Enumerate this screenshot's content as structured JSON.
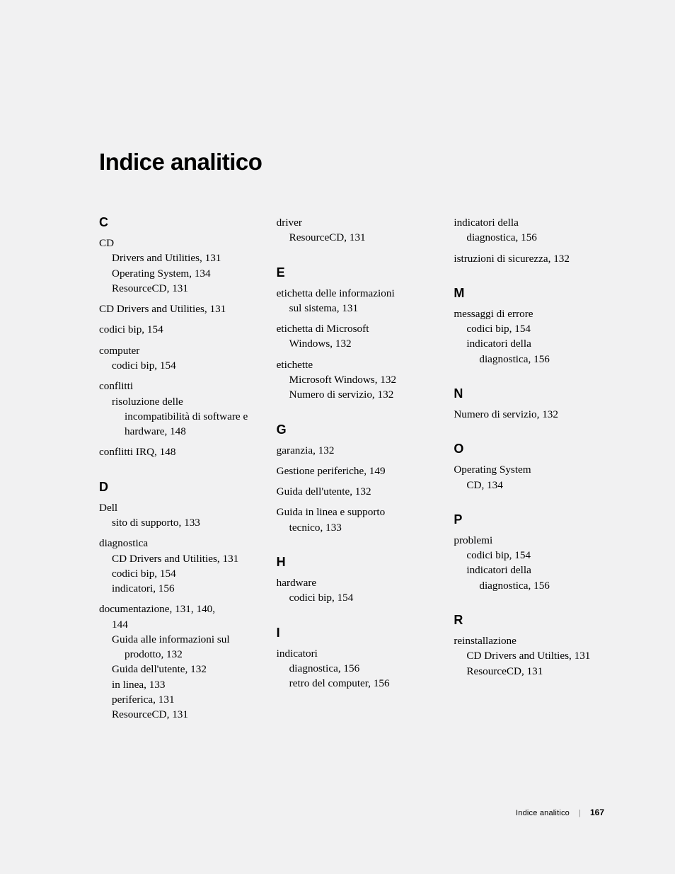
{
  "title": "Indice analitico",
  "footer": {
    "label": "Indice analitico",
    "page": "167"
  },
  "columns": [
    [
      {
        "type": "letter",
        "text": "C"
      },
      {
        "type": "entry",
        "head": "CD",
        "subs": [
          "Drivers and Utilities, 131",
          "Operating System, 134",
          "ResourceCD, 131"
        ]
      },
      {
        "type": "entry",
        "head": "CD Drivers and Utilities, 131"
      },
      {
        "type": "entry",
        "head": "codici bip, 154"
      },
      {
        "type": "entry",
        "head": "computer",
        "subs": [
          "codici bip, 154"
        ]
      },
      {
        "type": "entry",
        "head": "conflitti",
        "subs": [],
        "subs2": [
          {
            "lead": "risoluzione delle",
            "cont": "incompatibilità di software e hardware, 148"
          }
        ]
      },
      {
        "type": "entry",
        "head": "conflitti IRQ, 148"
      },
      {
        "type": "letter",
        "text": "D"
      },
      {
        "type": "entry",
        "head": "Dell",
        "subs": [
          "sito di supporto, 133"
        ]
      },
      {
        "type": "entry",
        "head": "diagnostica",
        "subs": [
          "CD Drivers and Utilities, 131",
          "codici bip, 154",
          "indicatori, 156"
        ]
      },
      {
        "type": "entry",
        "head": "documentazione, 131, 140,",
        "headcont": "144",
        "subs": [],
        "subswrap": [
          "Guida alle informazioni sul prodotto, 132"
        ],
        "subsplain": [
          "Guida dell'utente, 132",
          "in linea, 133",
          "periferica, 131",
          "ResourceCD, 131"
        ]
      }
    ],
    [
      {
        "type": "entry",
        "head": "driver",
        "subs": [
          "ResourceCD, 131"
        ],
        "first": true
      },
      {
        "type": "letter",
        "text": "E"
      },
      {
        "type": "entry",
        "head": "etichetta delle informazioni",
        "headcont": "sul sistema, 131"
      },
      {
        "type": "entry",
        "head": "etichetta di Microsoft",
        "headcont": "Windows, 132"
      },
      {
        "type": "entry",
        "head": "etichette",
        "subs": [
          "Microsoft Windows, 132",
          "Numero di servizio, 132"
        ]
      },
      {
        "type": "letter",
        "text": "G"
      },
      {
        "type": "entry",
        "head": "garanzia, 132"
      },
      {
        "type": "entry",
        "head": "Gestione periferiche, 149"
      },
      {
        "type": "entry",
        "head": "Guida dell'utente, 132"
      },
      {
        "type": "entry",
        "head": "Guida in linea e supporto",
        "headcont": "tecnico, 133"
      },
      {
        "type": "letter",
        "text": "H"
      },
      {
        "type": "entry",
        "head": "hardware",
        "subs": [
          "codici bip, 154"
        ]
      },
      {
        "type": "letter",
        "text": "I"
      },
      {
        "type": "entry",
        "head": "indicatori",
        "subs": [
          "diagnostica, 156",
          "retro del computer, 156"
        ]
      }
    ],
    [
      {
        "type": "entry",
        "head": "indicatori della",
        "headcont": "diagnostica, 156",
        "first": true
      },
      {
        "type": "entry",
        "head": "istruzioni di sicurezza, 132"
      },
      {
        "type": "letter",
        "text": "M"
      },
      {
        "type": "entry",
        "head": "messaggi di errore",
        "subs": [
          "codici bip, 154"
        ],
        "subswrap": [
          "indicatori della diagnostica, 156"
        ]
      },
      {
        "type": "letter",
        "text": "N"
      },
      {
        "type": "entry",
        "head": "Numero di servizio, 132"
      },
      {
        "type": "letter",
        "text": "O"
      },
      {
        "type": "entry",
        "head": "Operating System",
        "subs": [
          "CD, 134"
        ]
      },
      {
        "type": "letter",
        "text": "P"
      },
      {
        "type": "entry",
        "head": "problemi",
        "subs": [
          "codici bip, 154"
        ],
        "subswrap": [
          "indicatori della diagnostica, 156"
        ]
      },
      {
        "type": "letter",
        "text": "R"
      },
      {
        "type": "entry",
        "head": "reinstallazione",
        "subs": [
          "CD Drivers and Utilties, 131",
          "ResourceCD, 131"
        ]
      }
    ]
  ]
}
